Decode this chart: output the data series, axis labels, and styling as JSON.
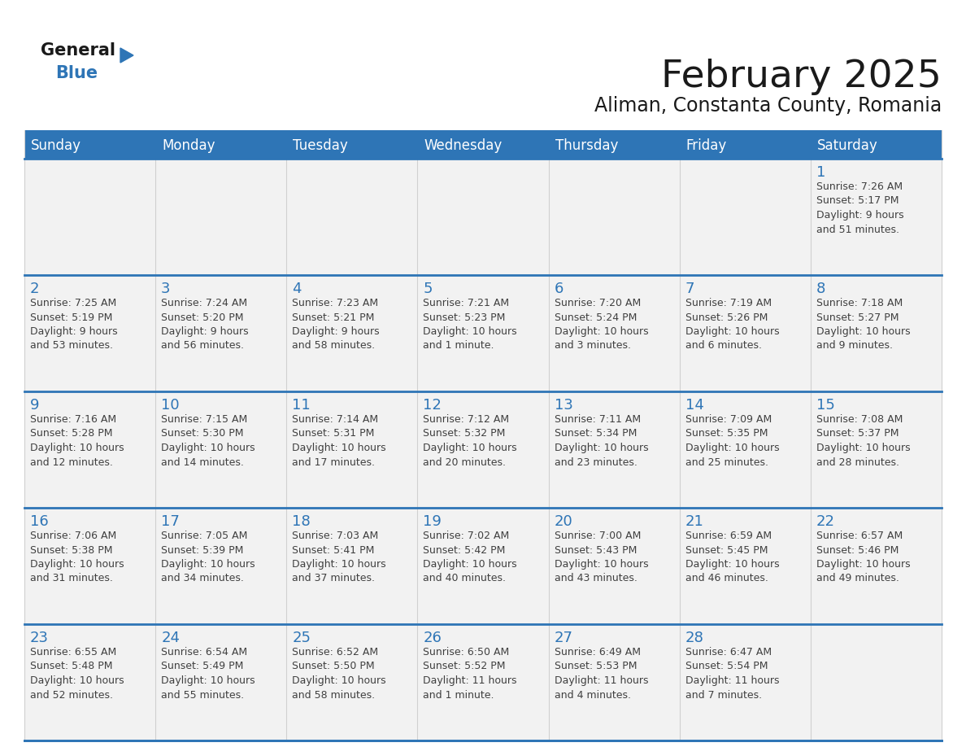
{
  "title": "February 2025",
  "subtitle": "Aliman, Constanta County, Romania",
  "header_bg": "#2E75B6",
  "header_text_color": "#FFFFFF",
  "cell_bg_odd": "#F2F2F2",
  "cell_bg_even": "#FFFFFF",
  "border_color": "#2E75B6",
  "row_divider_color": "#2E75B6",
  "col_divider_color": "#D0D0D0",
  "day_number_color": "#2E75B6",
  "cell_text_color": "#404040",
  "days_of_week": [
    "Sunday",
    "Monday",
    "Tuesday",
    "Wednesday",
    "Thursday",
    "Friday",
    "Saturday"
  ],
  "weeks": [
    [
      {
        "day": null,
        "text": ""
      },
      {
        "day": null,
        "text": ""
      },
      {
        "day": null,
        "text": ""
      },
      {
        "day": null,
        "text": ""
      },
      {
        "day": null,
        "text": ""
      },
      {
        "day": null,
        "text": ""
      },
      {
        "day": 1,
        "text": "Sunrise: 7:26 AM\nSunset: 5:17 PM\nDaylight: 9 hours\nand 51 minutes."
      }
    ],
    [
      {
        "day": 2,
        "text": "Sunrise: 7:25 AM\nSunset: 5:19 PM\nDaylight: 9 hours\nand 53 minutes."
      },
      {
        "day": 3,
        "text": "Sunrise: 7:24 AM\nSunset: 5:20 PM\nDaylight: 9 hours\nand 56 minutes."
      },
      {
        "day": 4,
        "text": "Sunrise: 7:23 AM\nSunset: 5:21 PM\nDaylight: 9 hours\nand 58 minutes."
      },
      {
        "day": 5,
        "text": "Sunrise: 7:21 AM\nSunset: 5:23 PM\nDaylight: 10 hours\nand 1 minute."
      },
      {
        "day": 6,
        "text": "Sunrise: 7:20 AM\nSunset: 5:24 PM\nDaylight: 10 hours\nand 3 minutes."
      },
      {
        "day": 7,
        "text": "Sunrise: 7:19 AM\nSunset: 5:26 PM\nDaylight: 10 hours\nand 6 minutes."
      },
      {
        "day": 8,
        "text": "Sunrise: 7:18 AM\nSunset: 5:27 PM\nDaylight: 10 hours\nand 9 minutes."
      }
    ],
    [
      {
        "day": 9,
        "text": "Sunrise: 7:16 AM\nSunset: 5:28 PM\nDaylight: 10 hours\nand 12 minutes."
      },
      {
        "day": 10,
        "text": "Sunrise: 7:15 AM\nSunset: 5:30 PM\nDaylight: 10 hours\nand 14 minutes."
      },
      {
        "day": 11,
        "text": "Sunrise: 7:14 AM\nSunset: 5:31 PM\nDaylight: 10 hours\nand 17 minutes."
      },
      {
        "day": 12,
        "text": "Sunrise: 7:12 AM\nSunset: 5:32 PM\nDaylight: 10 hours\nand 20 minutes."
      },
      {
        "day": 13,
        "text": "Sunrise: 7:11 AM\nSunset: 5:34 PM\nDaylight: 10 hours\nand 23 minutes."
      },
      {
        "day": 14,
        "text": "Sunrise: 7:09 AM\nSunset: 5:35 PM\nDaylight: 10 hours\nand 25 minutes."
      },
      {
        "day": 15,
        "text": "Sunrise: 7:08 AM\nSunset: 5:37 PM\nDaylight: 10 hours\nand 28 minutes."
      }
    ],
    [
      {
        "day": 16,
        "text": "Sunrise: 7:06 AM\nSunset: 5:38 PM\nDaylight: 10 hours\nand 31 minutes."
      },
      {
        "day": 17,
        "text": "Sunrise: 7:05 AM\nSunset: 5:39 PM\nDaylight: 10 hours\nand 34 minutes."
      },
      {
        "day": 18,
        "text": "Sunrise: 7:03 AM\nSunset: 5:41 PM\nDaylight: 10 hours\nand 37 minutes."
      },
      {
        "day": 19,
        "text": "Sunrise: 7:02 AM\nSunset: 5:42 PM\nDaylight: 10 hours\nand 40 minutes."
      },
      {
        "day": 20,
        "text": "Sunrise: 7:00 AM\nSunset: 5:43 PM\nDaylight: 10 hours\nand 43 minutes."
      },
      {
        "day": 21,
        "text": "Sunrise: 6:59 AM\nSunset: 5:45 PM\nDaylight: 10 hours\nand 46 minutes."
      },
      {
        "day": 22,
        "text": "Sunrise: 6:57 AM\nSunset: 5:46 PM\nDaylight: 10 hours\nand 49 minutes."
      }
    ],
    [
      {
        "day": 23,
        "text": "Sunrise: 6:55 AM\nSunset: 5:48 PM\nDaylight: 10 hours\nand 52 minutes."
      },
      {
        "day": 24,
        "text": "Sunrise: 6:54 AM\nSunset: 5:49 PM\nDaylight: 10 hours\nand 55 minutes."
      },
      {
        "day": 25,
        "text": "Sunrise: 6:52 AM\nSunset: 5:50 PM\nDaylight: 10 hours\nand 58 minutes."
      },
      {
        "day": 26,
        "text": "Sunrise: 6:50 AM\nSunset: 5:52 PM\nDaylight: 11 hours\nand 1 minute."
      },
      {
        "day": 27,
        "text": "Sunrise: 6:49 AM\nSunset: 5:53 PM\nDaylight: 11 hours\nand 4 minutes."
      },
      {
        "day": 28,
        "text": "Sunrise: 6:47 AM\nSunset: 5:54 PM\nDaylight: 11 hours\nand 7 minutes."
      },
      {
        "day": null,
        "text": ""
      }
    ]
  ],
  "title_fontsize": 34,
  "subtitle_fontsize": 17,
  "header_fontsize": 12,
  "day_num_fontsize": 13,
  "cell_text_fontsize": 9,
  "logo_general_color": "#1a1a1a",
  "logo_blue_color": "#2E75B6",
  "logo_triangle_color": "#2E75B6"
}
